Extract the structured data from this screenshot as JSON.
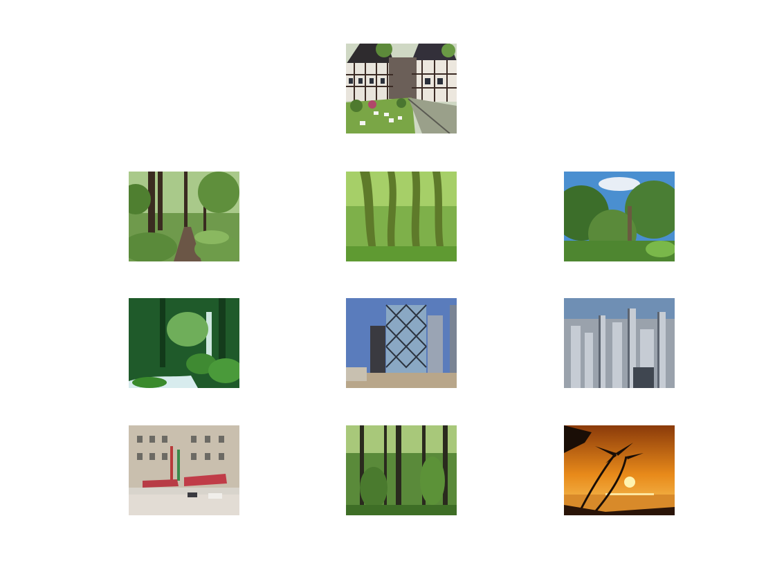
{
  "figure": {
    "background": "#ffffff",
    "query_image": {
      "subject": "half-timbered-village-garden"
    },
    "results": [
      {
        "subject": "forest-path-ferns"
      },
      {
        "subject": "mossy-rainforest"
      },
      {
        "subject": "green-trees-sky"
      },
      {
        "subject": "forest-waterfall-mossy-rocks"
      },
      {
        "subject": "glass-diagrid-skyscraper"
      },
      {
        "subject": "city-skyline-aerial"
      },
      {
        "subject": "city-street-hotel-facade"
      },
      {
        "subject": "tall-forest-trunks"
      },
      {
        "subject": "tropical-sunset-palms"
      }
    ]
  }
}
